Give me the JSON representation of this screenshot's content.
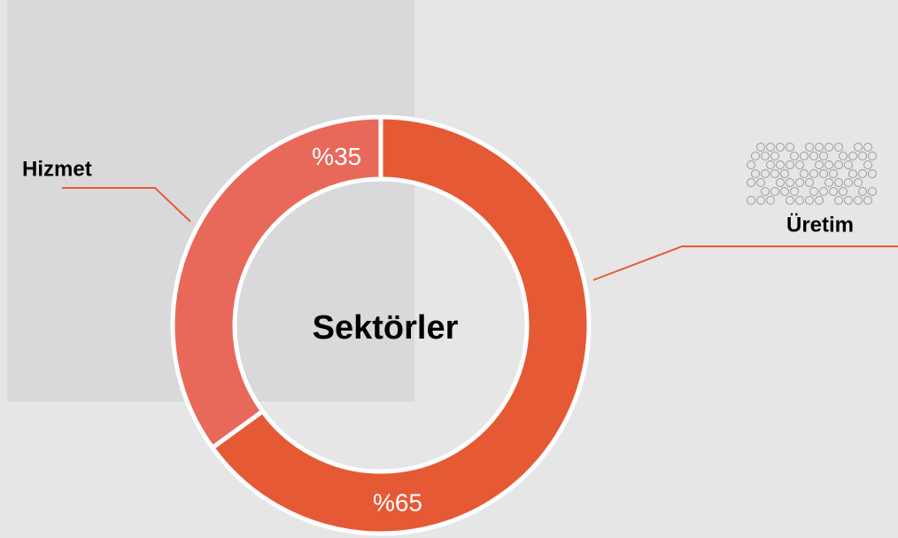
{
  "chart_data": {
    "type": "pie",
    "donut": true,
    "center_label": "Sektörler",
    "categories": [
      "Üretim",
      "Hizmet"
    ],
    "values": [
      65,
      35
    ],
    "value_labels": [
      "%65",
      "%35"
    ],
    "colors": [
      "#e55a35",
      "#e8695a"
    ]
  }
}
